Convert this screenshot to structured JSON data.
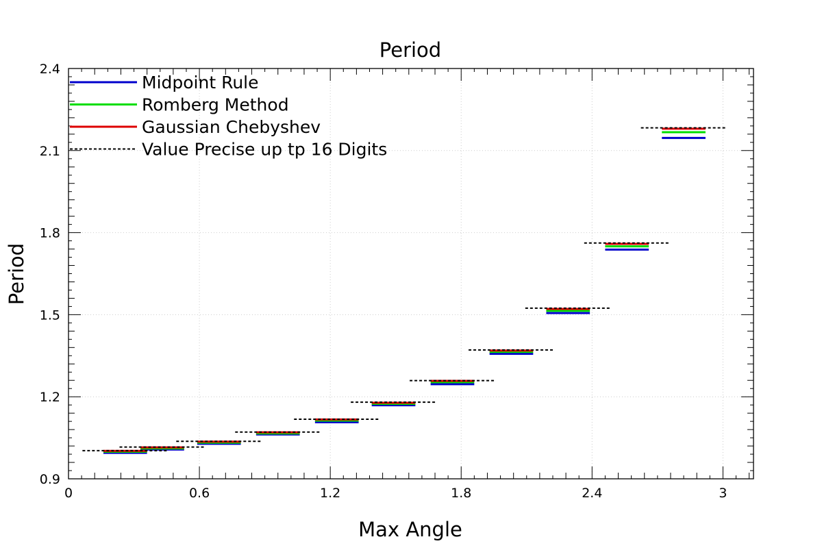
{
  "chart_data": {
    "type": "line",
    "title": "Period",
    "xlabel": "Max Angle",
    "ylabel": "Period",
    "xlim": [
      0,
      3.14
    ],
    "ylim": [
      0.9,
      2.4
    ],
    "x_ticks": [
      0,
      0.6,
      1.2,
      1.8,
      2.4,
      3
    ],
    "x_tick_labels": [
      "0",
      "0.6",
      "1.2",
      "1.8",
      "2.4",
      "3"
    ],
    "y_ticks": [
      0.9,
      1.2,
      1.5,
      1.8,
      2.1,
      2.4
    ],
    "y_tick_labels": [
      "0.9",
      "1.2",
      "1.5",
      "1.8",
      "2.1",
      "2.4"
    ],
    "grid": true,
    "legend_position": "top-left",
    "x": [
      0.26,
      0.43,
      0.69,
      0.96,
      1.23,
      1.49,
      1.76,
      2.03,
      2.29,
      2.56,
      2.82
    ],
    "series": [
      {
        "name": "Midpoint Rule",
        "color": "#0000cc",
        "style": "solid",
        "values": [
          0.995,
          1.007,
          1.028,
          1.062,
          1.107,
          1.169,
          1.246,
          1.357,
          1.506,
          1.738,
          2.146
        ]
      },
      {
        "name": "Romberg Method",
        "color": "#00dd00",
        "style": "solid",
        "values": [
          0.999,
          1.011,
          1.032,
          1.066,
          1.113,
          1.174,
          1.253,
          1.364,
          1.514,
          1.75,
          2.167
        ]
      },
      {
        "name": "Gaussian Chebyshev",
        "color": "#dd0000",
        "style": "solid",
        "values": [
          1.002,
          1.015,
          1.036,
          1.07,
          1.117,
          1.178,
          1.258,
          1.369,
          1.521,
          1.759,
          2.18
        ]
      },
      {
        "name": "Value Precise up tp 16 Digits",
        "color": "#000000",
        "style": "dashed",
        "values": [
          1.003,
          1.016,
          1.037,
          1.071,
          1.118,
          1.18,
          1.259,
          1.371,
          1.524,
          1.762,
          2.183
        ]
      }
    ]
  }
}
